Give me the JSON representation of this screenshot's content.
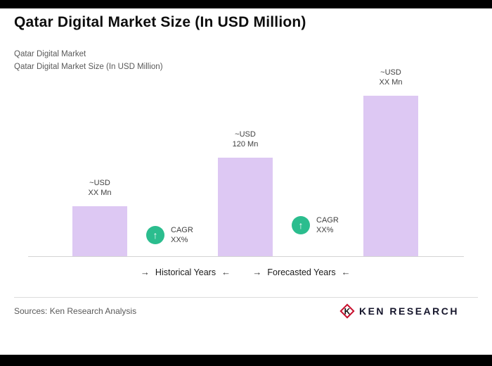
{
  "header": {
    "title": "Qatar Digital Market Size (In USD Million)",
    "subtitle1": "Qatar Digital Market",
    "subtitle2": "Qatar Digital Market Size (In USD Million)"
  },
  "chart_data": {
    "type": "bar",
    "title": "Qatar Digital Market Size (In USD Million)",
    "ylabel": "USD Million",
    "categories": [
      "~USD XX Mn",
      "~USD 120 Mn",
      "~USD XX Mn"
    ],
    "values": [
      61,
      120,
      195
    ],
    "bar_labels": [
      {
        "line1": "~USD",
        "line2": "XX Mn"
      },
      {
        "line1": "~USD",
        "line2": "120 Mn"
      },
      {
        "line1": "~USD",
        "line2": "XX Mn"
      }
    ],
    "bar_color": "#ddc8f3",
    "badge_color": "#2bbd8e",
    "axis_sections": [
      {
        "label": "Historical Years"
      },
      {
        "label": "Forecasted Years"
      }
    ],
    "cagr_badges": [
      {
        "label": "CAGR",
        "value": "XX%"
      },
      {
        "label": "CAGR",
        "value": "XX%"
      }
    ],
    "grid": "off",
    "legend": "none"
  },
  "icons": {
    "arrow_right": "→",
    "arrow_left": "←",
    "up_arrow": "↑"
  },
  "footer": {
    "sources": "Sources: Ken Research Analysis",
    "logo_letter": "K",
    "logo_text": "KEN RESEARCH",
    "logo_accent": "#c8102e"
  }
}
